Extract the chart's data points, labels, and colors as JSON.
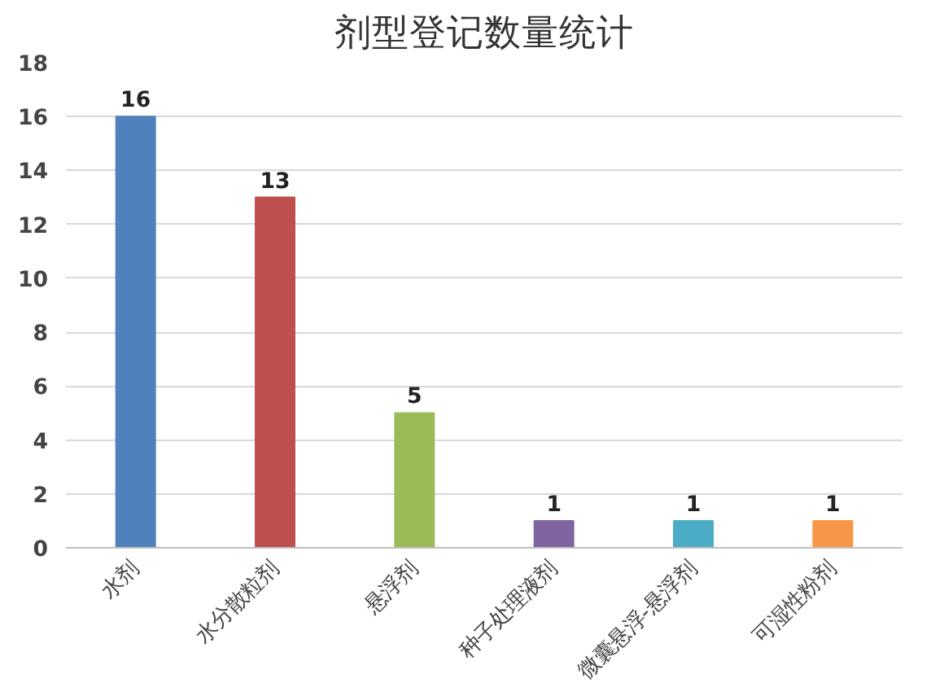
{
  "chart_data": {
    "type": "bar",
    "title": "剂型登记数量统计",
    "categories": [
      "水剂",
      "水分散粒剂",
      "悬浮剂",
      "种子处理液剂",
      "微囊悬浮-悬浮剂",
      "可湿性粉剂"
    ],
    "values": [
      16,
      13,
      5,
      1,
      1,
      1
    ],
    "colors": [
      "#4f81bd",
      "#c0504d",
      "#9bbb59",
      "#8064a2",
      "#4bacc6",
      "#f79646"
    ],
    "ylim": [
      0,
      18
    ],
    "yticks": [
      0,
      2,
      4,
      6,
      8,
      10,
      12,
      14,
      16,
      18
    ],
    "grid": "y",
    "data_labels": true
  }
}
